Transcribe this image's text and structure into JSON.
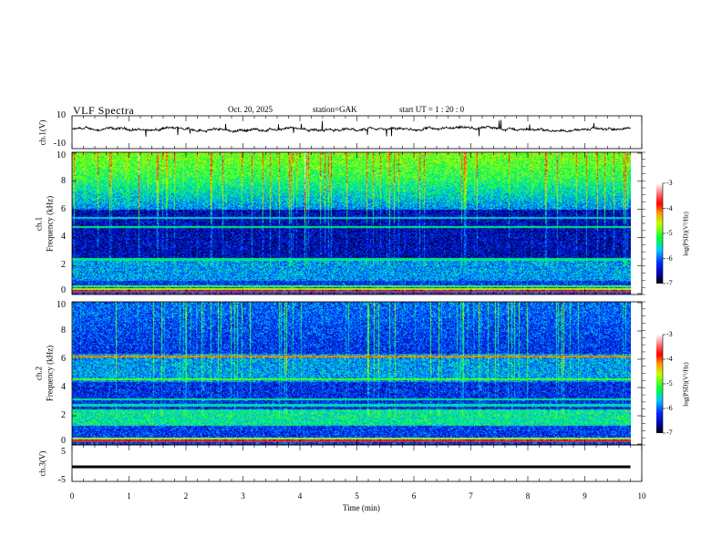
{
  "header": {
    "title": "VLF  Spectra",
    "date": "Oct. 20, 2025",
    "station": "station=GAK",
    "start_ut": "start  UT  =   1  : 20 : 0"
  },
  "chart_data": [
    {
      "type": "line",
      "name": "ch1-waveform",
      "ylabel": "ch.1(V)",
      "ylim": [
        -10,
        10
      ],
      "ytick_labels": [
        "10",
        "-10"
      ],
      "xlim": [
        0,
        10
      ],
      "data_extent_min": 9.8,
      "baseline": 0,
      "color": "#000000"
    },
    {
      "type": "heatmap",
      "name": "ch1-spectrogram",
      "ylabel": "ch.1\nFrequency (kHz)",
      "ylabel_line1": "ch.1",
      "ylabel_line2": "Frequency  (kHz)",
      "ylim": [
        0,
        10
      ],
      "ytick_labels": [
        "0",
        "2",
        "4",
        "6",
        "8",
        "10"
      ],
      "colorbar": {
        "label": "log(PSD)(V²/Hz)",
        "range": [
          -7,
          -3
        ],
        "tick_labels": [
          "-3",
          "-4",
          "-5",
          "-6",
          "-7"
        ]
      }
    },
    {
      "type": "heatmap",
      "name": "ch2-spectrogram",
      "ylabel_line1": "ch.2",
      "ylabel_line2": "Frequency  (kHz)",
      "ylim": [
        0,
        10
      ],
      "ytick_labels": [
        "0",
        "2",
        "4",
        "6",
        "8",
        "10"
      ],
      "colorbar": {
        "label": "log(PSD)(V²/Hz)",
        "range": [
          -7,
          -3
        ],
        "tick_labels": [
          "-3",
          "-4",
          "-5",
          "-6",
          "-7"
        ]
      }
    },
    {
      "type": "line",
      "name": "ch3-waveform",
      "ylabel": "ch.3(V)",
      "ylim": [
        -5,
        5
      ],
      "ytick_labels": [
        "5",
        "-5"
      ],
      "baseline": 0,
      "color": "#000000"
    }
  ],
  "xaxis": {
    "label": "Time  (min)",
    "range": [
      0,
      10
    ],
    "tick_labels": [
      "0",
      "1",
      "2",
      "3",
      "4",
      "5",
      "6",
      "7",
      "8",
      "9",
      "10"
    ]
  }
}
